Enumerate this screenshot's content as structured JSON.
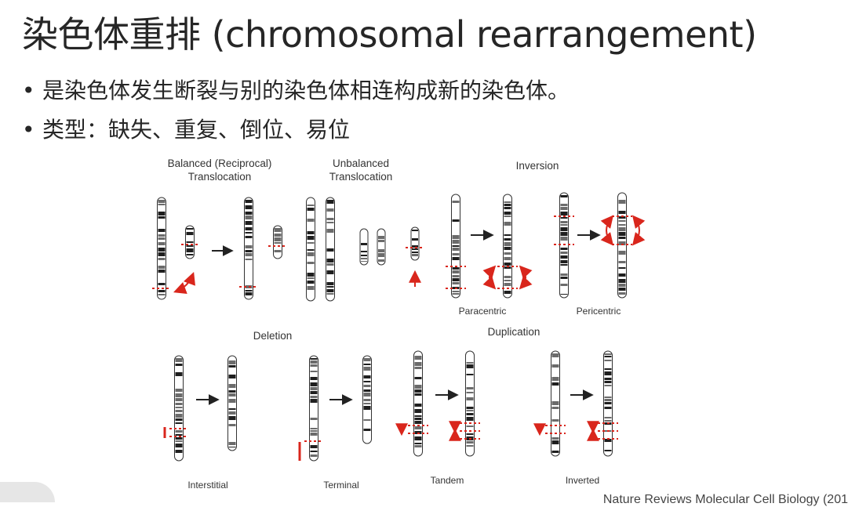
{
  "title": "染色体重排 (chromosomal rearrangement)",
  "bullets": [
    "是染色体发生断裂与别的染色体相连构成新的染色体。",
    "类型：缺失、重复、倒位、易位"
  ],
  "figure": {
    "balanced": [
      "Balanced (Reciprocal)",
      "Translocation"
    ],
    "unbalanced": [
      "Unbalanced",
      "Translocation"
    ],
    "inversion": "Inversion",
    "paracentric": "Paracentric",
    "pericentric": "Pericentric",
    "deletion": "Deletion",
    "duplication": "Duplication",
    "interstitial": "Interstitial",
    "terminal": "Terminal",
    "tandem": "Tandem",
    "inverted": "Inverted"
  },
  "citation": "Nature Reviews Molecular Cell Biology (201",
  "colors": {
    "accent": "#d9261c",
    "band": "#2a2a2a"
  }
}
